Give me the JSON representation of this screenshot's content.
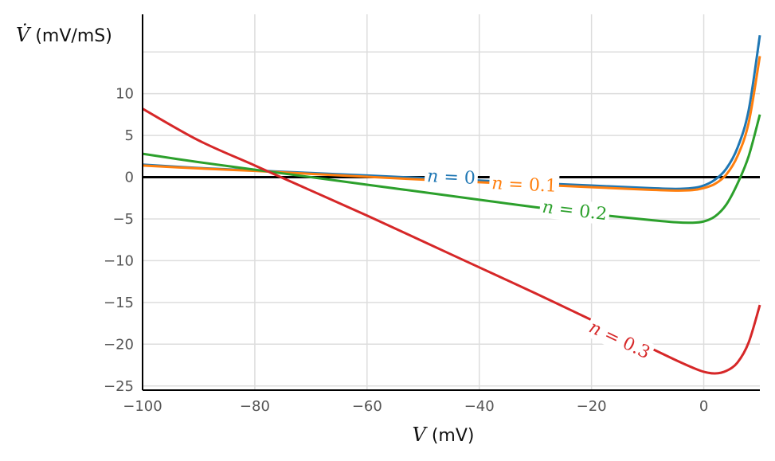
{
  "chart_data": {
    "type": "line",
    "xlabel": {
      "var": "V",
      "unit": " (mV)"
    },
    "ylabel": {
      "var": "V̇",
      "unit": " (mV/mS)"
    },
    "xlim": [
      -100,
      10
    ],
    "ylim": [
      -25.5,
      19.5
    ],
    "xticks": [
      -100,
      -80,
      -60,
      -40,
      -20,
      0
    ],
    "xtick_labels": [
      "−100",
      "−80",
      "−60",
      "−40",
      "−20",
      "0"
    ],
    "yticks": [
      -25,
      -20,
      -15,
      -10,
      -5,
      0,
      5,
      10,
      15
    ],
    "ytick_labels": [
      "−25",
      "−20",
      "−15",
      "−10",
      "−5",
      "0",
      "5",
      "10",
      ""
    ],
    "grid": true,
    "zero_line": 0,
    "series": [
      {
        "name": "n = 0",
        "color": "#1f77b4",
        "label": {
          "var": "n",
          "rest": " = 0",
          "x": -45,
          "y": 0.0
        },
        "x": [
          -100,
          -90,
          -80,
          -70,
          -60,
          -50,
          -40,
          -30,
          -20,
          -10,
          -5,
          -2,
          0,
          2,
          4,
          6,
          8,
          10
        ],
        "y": [
          1.5,
          1.1,
          0.8,
          0.5,
          0.2,
          -0.1,
          -0.4,
          -0.7,
          -1.0,
          -1.3,
          -1.4,
          -1.3,
          -1.0,
          -0.3,
          1.0,
          3.5,
          8.0,
          17.0
        ]
      },
      {
        "name": "n = 0.1",
        "color": "#ff7f0e",
        "label": {
          "var": "n",
          "rest": " = 0.1",
          "x": -32,
          "y": -0.9
        },
        "x": [
          -100,
          -90,
          -80,
          -70,
          -60,
          -50,
          -40,
          -30,
          -20,
          -10,
          -5,
          -2,
          0,
          2,
          4,
          6,
          8,
          10
        ],
        "y": [
          1.4,
          1.05,
          0.75,
          0.4,
          0.05,
          -0.3,
          -0.6,
          -0.9,
          -1.2,
          -1.5,
          -1.6,
          -1.55,
          -1.3,
          -0.8,
          0.3,
          2.5,
          6.5,
          14.5
        ]
      },
      {
        "name": "n = 0.2",
        "color": "#2ca02c",
        "label": {
          "var": "n",
          "rest": " = 0.2",
          "x": -23,
          "y": -4.0
        },
        "x": [
          -100,
          -90,
          -80,
          -70,
          -60,
          -50,
          -40,
          -30,
          -20,
          -10,
          -5,
          -2,
          0,
          2,
          4,
          6,
          8,
          10
        ],
        "y": [
          2.8,
          1.8,
          0.9,
          0.0,
          -0.9,
          -1.8,
          -2.7,
          -3.6,
          -4.4,
          -5.1,
          -5.4,
          -5.45,
          -5.3,
          -4.7,
          -3.3,
          -0.8,
          2.5,
          7.5
        ]
      },
      {
        "name": "n = 0.3",
        "color": "#d62728",
        "label": {
          "var": "n",
          "rest": " = 0.3",
          "x": -15,
          "y": -19.5
        },
        "x": [
          -100,
          -90,
          -80,
          -70,
          -60,
          -50,
          -40,
          -30,
          -20,
          -10,
          -5,
          -2,
          0,
          2,
          4,
          6,
          8,
          10
        ],
        "y": [
          8.2,
          4.4,
          1.4,
          -1.6,
          -4.6,
          -7.7,
          -10.8,
          -13.9,
          -17.1,
          -20.3,
          -21.9,
          -22.8,
          -23.3,
          -23.5,
          -23.2,
          -22.2,
          -19.8,
          -15.3
        ]
      }
    ]
  }
}
